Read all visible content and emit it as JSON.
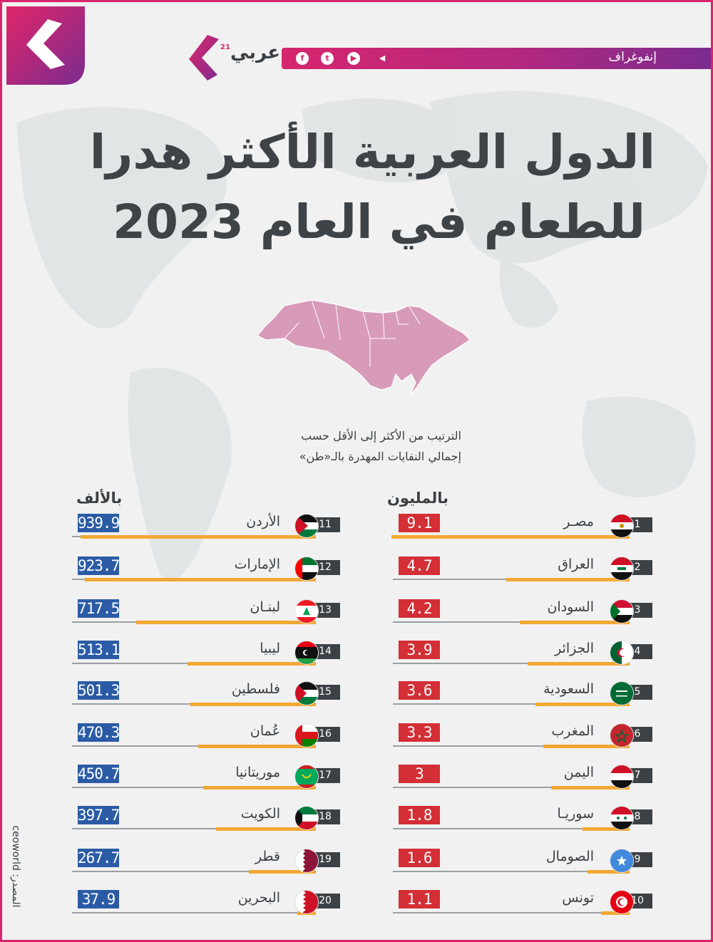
{
  "header": {
    "category_label": "إنفوغراف",
    "brand_name": "عربي",
    "brand_sup": "21",
    "social_icons": [
      "facebook-icon",
      "twitter-icon",
      "youtube-icon",
      "telegram-icon"
    ]
  },
  "title": {
    "line1": "الدول العربية الأكثر هدرا",
    "line2": "للطعام في العام 2023"
  },
  "subtitle": {
    "line1": "الترتيب من الأكثر إلى الأقل حسب",
    "line2": "إجمالي النفايات المهدرة بالـ«طن»"
  },
  "colors": {
    "accent": "#d6266e",
    "bar": "#f2a833",
    "value_red": "#d42e36",
    "value_blue": "#2b5ba5",
    "rank_bg": "#3c4145"
  },
  "chart_data": [
    {
      "type": "bar",
      "unit_label": "بالمليون",
      "categories": [
        "مصـر",
        "العراق",
        "السودان",
        "الجزائر",
        "السعودية",
        "المغرب",
        "اليمن",
        "سوريـا",
        "الصومال",
        "تونس"
      ],
      "ranks": [
        "1",
        "2",
        "3",
        "4",
        "5",
        "6",
        "7",
        "8",
        "9",
        "10"
      ],
      "flags": [
        "egypt-flag-icon",
        "iraq-flag-icon",
        "sudan-flag-icon",
        "algeria-flag-icon",
        "saudi-flag-icon",
        "morocco-flag-icon",
        "yemen-flag-icon",
        "syria-flag-icon",
        "somalia-flag-icon",
        "tunisia-flag-icon"
      ],
      "values": [
        9.1,
        4.7,
        4.2,
        3.9,
        3.6,
        3.3,
        3,
        1.8,
        1.6,
        1.1
      ],
      "value_labels": [
        "9.1",
        "4.7",
        "4.2",
        "3.9",
        "3.6",
        "3.3",
        "3",
        "1.8",
        "1.6",
        "1.1"
      ]
    },
    {
      "type": "bar",
      "unit_label": "بالألف",
      "categories": [
        "الأردن",
        "الإمارات",
        "لبنـان",
        "ليبيا",
        "فلسطين",
        "عُمان",
        "موريتانيا",
        "الكويت",
        "قطر",
        "البحرين"
      ],
      "ranks": [
        "11",
        "12",
        "13",
        "14",
        "15",
        "16",
        "17",
        "18",
        "19",
        "20"
      ],
      "flags": [
        "jordan-flag-icon",
        "uae-flag-icon",
        "lebanon-flag-icon",
        "libya-flag-icon",
        "palestine-flag-icon",
        "oman-flag-icon",
        "mauritania-flag-icon",
        "kuwait-flag-icon",
        "qatar-flag-icon",
        "bahrain-flag-icon"
      ],
      "values": [
        939.9,
        923.7,
        717.5,
        513.1,
        501.3,
        470.3,
        450.7,
        397.7,
        267.7,
        37.9
      ],
      "value_labels": [
        "939.9",
        "923.7",
        "717.5",
        "513.1",
        "501.3",
        "470.3",
        "450.7",
        "397.7",
        "267.7",
        "37.9"
      ]
    }
  ],
  "source": "المصدر: ceoworld"
}
